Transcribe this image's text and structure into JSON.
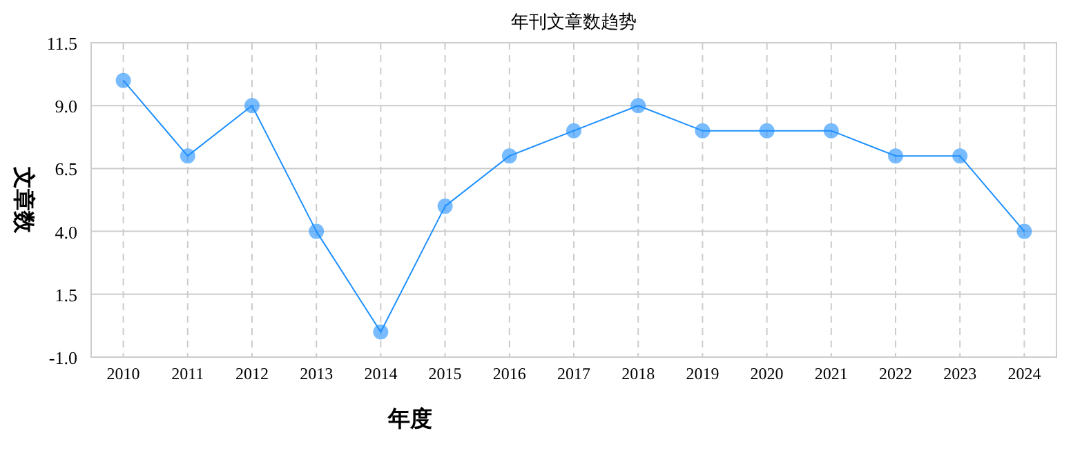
{
  "chart_data": {
    "type": "line",
    "title": "年刊文章数趋势",
    "xlabel": "年度",
    "ylabel": "文章数",
    "categories": [
      "2010",
      "2011",
      "2012",
      "2013",
      "2014",
      "2015",
      "2016",
      "2017",
      "2018",
      "2019",
      "2020",
      "2021",
      "2022",
      "2023",
      "2024"
    ],
    "series": [
      {
        "color": "#1e90ff",
        "values": [
          10,
          7,
          9,
          4,
          0,
          5,
          7,
          8,
          9,
          8,
          8,
          8,
          7,
          7,
          4
        ]
      }
    ],
    "ylim": [
      -1,
      11.5
    ],
    "yticks": [
      {
        "value": -1,
        "label": "-1.0"
      },
      1.5,
      {
        "value": 4,
        "label": "4.0"
      },
      6.5,
      {
        "value": 9,
        "label": "9.0"
      },
      11.5
    ],
    "grid": true,
    "marker": "circle"
  }
}
